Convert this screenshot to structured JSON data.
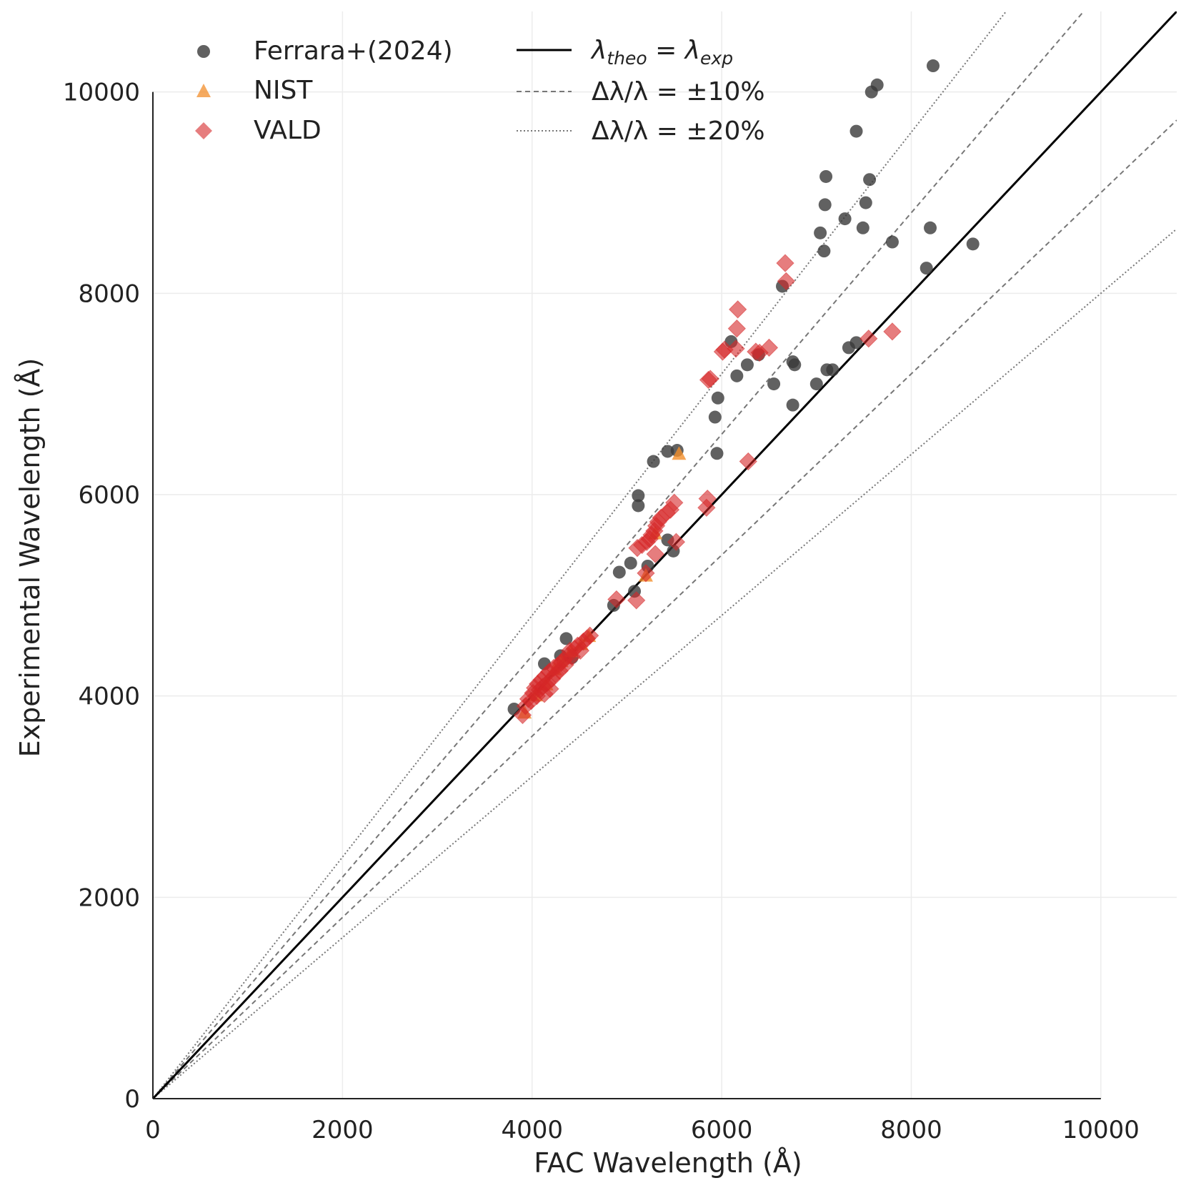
{
  "chart_data": {
    "type": "scatter",
    "title": "",
    "xlabel": "FAC Wavelength (Å)",
    "ylabel": "Experimental Wavelength (Å)",
    "xlim": [
      0,
      10800
    ],
    "ylim": [
      0,
      10800
    ],
    "xticks": [
      "0",
      "2000",
      "4000",
      "6000",
      "8000",
      "10000"
    ],
    "yticks": [
      "0",
      "2000",
      "4000",
      "6000",
      "8000",
      "10000"
    ],
    "tick_values": [
      0,
      2000,
      4000,
      6000,
      8000,
      10000
    ],
    "grid": true,
    "legend_position": "top-left",
    "series": [
      {
        "name": "Ferrara+(2024)",
        "marker": "circle",
        "color": "#3a3a3a",
        "points": [
          [
            3810,
            3870
          ],
          [
            4130,
            4320
          ],
          [
            4360,
            4570
          ],
          [
            4300,
            4400
          ],
          [
            4420,
            4380
          ],
          [
            4860,
            4900
          ],
          [
            4920,
            5230
          ],
          [
            5040,
            5320
          ],
          [
            5080,
            5040
          ],
          [
            5120,
            5990
          ],
          [
            5120,
            5890
          ],
          [
            5220,
            5290
          ],
          [
            5280,
            6330
          ],
          [
            5430,
            6430
          ],
          [
            5530,
            6440
          ],
          [
            5430,
            5550
          ],
          [
            5490,
            5440
          ],
          [
            5930,
            6770
          ],
          [
            5960,
            6960
          ],
          [
            5950,
            6410
          ],
          [
            6100,
            7520
          ],
          [
            6160,
            7180
          ],
          [
            6270,
            7290
          ],
          [
            6390,
            7390
          ],
          [
            6550,
            7100
          ],
          [
            6640,
            8070
          ],
          [
            6750,
            7320
          ],
          [
            6770,
            7290
          ],
          [
            6750,
            6890
          ],
          [
            7000,
            7100
          ],
          [
            7040,
            8600
          ],
          [
            7080,
            8420
          ],
          [
            7090,
            8880
          ],
          [
            7100,
            9160
          ],
          [
            7110,
            7240
          ],
          [
            7170,
            7240
          ],
          [
            7300,
            8740
          ],
          [
            7340,
            7460
          ],
          [
            7420,
            7510
          ],
          [
            7420,
            9610
          ],
          [
            7490,
            8650
          ],
          [
            7520,
            8900
          ],
          [
            7560,
            9130
          ],
          [
            7580,
            10000
          ],
          [
            7640,
            10070
          ],
          [
            7800,
            8510
          ],
          [
            8160,
            8250
          ],
          [
            8200,
            8650
          ],
          [
            8230,
            10260
          ],
          [
            8650,
            8490
          ]
        ]
      },
      {
        "name": "NIST",
        "marker": "triangle",
        "color": "#f28e2b",
        "points": [
          [
            3920,
            3840
          ],
          [
            4040,
            4010
          ],
          [
            4150,
            4120
          ],
          [
            4240,
            4270
          ],
          [
            4310,
            4350
          ],
          [
            4410,
            4450
          ],
          [
            4520,
            4520
          ],
          [
            4600,
            4600
          ],
          [
            5200,
            5200
          ],
          [
            5300,
            5620
          ],
          [
            5550,
            6410
          ]
        ]
      },
      {
        "name": "VALD",
        "marker": "diamond",
        "color": "#d62728",
        "points": [
          [
            3900,
            3810
          ],
          [
            3930,
            3900
          ],
          [
            3960,
            3970
          ],
          [
            3990,
            3950
          ],
          [
            4010,
            4030
          ],
          [
            4030,
            4080
          ],
          [
            4050,
            4000
          ],
          [
            4060,
            4120
          ],
          [
            4080,
            4060
          ],
          [
            4100,
            4160
          ],
          [
            4110,
            4090
          ],
          [
            4130,
            4020
          ],
          [
            4140,
            4200
          ],
          [
            4160,
            4130
          ],
          [
            4180,
            4240
          ],
          [
            4190,
            4070
          ],
          [
            4210,
            4170
          ],
          [
            4230,
            4280
          ],
          [
            4250,
            4220
          ],
          [
            4270,
            4300
          ],
          [
            4290,
            4250
          ],
          [
            4310,
            4330
          ],
          [
            4330,
            4360
          ],
          [
            4350,
            4310
          ],
          [
            4380,
            4400
          ],
          [
            4400,
            4450
          ],
          [
            4420,
            4390
          ],
          [
            4450,
            4470
          ],
          [
            4480,
            4500
          ],
          [
            4510,
            4450
          ],
          [
            4540,
            4540
          ],
          [
            4580,
            4570
          ],
          [
            4610,
            4600
          ],
          [
            4890,
            4960
          ],
          [
            5100,
            4950
          ],
          [
            5110,
            5470
          ],
          [
            5160,
            5500
          ],
          [
            5200,
            5220
          ],
          [
            5210,
            5530
          ],
          [
            5240,
            5560
          ],
          [
            5260,
            5600
          ],
          [
            5290,
            5640
          ],
          [
            5300,
            5410
          ],
          [
            5310,
            5690
          ],
          [
            5330,
            5730
          ],
          [
            5360,
            5770
          ],
          [
            5420,
            5820
          ],
          [
            5460,
            5850
          ],
          [
            5500,
            5920
          ],
          [
            5520,
            5530
          ],
          [
            5840,
            5870
          ],
          [
            5850,
            5960
          ],
          [
            5860,
            7140
          ],
          [
            5880,
            7150
          ],
          [
            6010,
            7420
          ],
          [
            6030,
            7440
          ],
          [
            6150,
            7450
          ],
          [
            6160,
            7650
          ],
          [
            6170,
            7840
          ],
          [
            6280,
            6330
          ],
          [
            6360,
            7420
          ],
          [
            6400,
            7410
          ],
          [
            6500,
            7460
          ],
          [
            6670,
            8300
          ],
          [
            6680,
            8120
          ],
          [
            7550,
            7550
          ],
          [
            7800,
            7620
          ]
        ]
      }
    ],
    "reference_lines": [
      {
        "name": "λ_theo = λ_exp",
        "slope": 1.0,
        "style": "solid"
      },
      {
        "name": "Δλ/λ = ±10%",
        "slopes": [
          1.1,
          0.9
        ],
        "style": "dashed"
      },
      {
        "name": "Δλ/λ = ±20%",
        "slopes": [
          1.2,
          0.8
        ],
        "style": "dotted"
      }
    ],
    "legend": {
      "left": [
        "Ferrara+(2024)",
        "NIST",
        "VALD"
      ],
      "right_main": "λ",
      "right_sub1": "theo",
      "right_eq": " = ",
      "right_sub2": "exp",
      "right_10": "Δλ/λ = ±10%",
      "right_20": "Δλ/λ = ±20%"
    }
  }
}
